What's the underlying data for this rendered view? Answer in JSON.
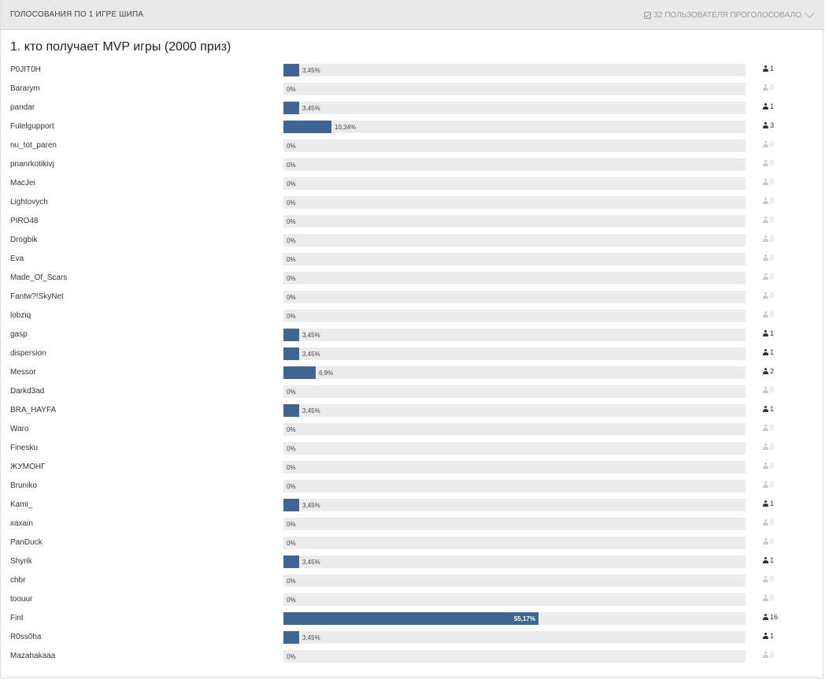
{
  "header": {
    "title": "ГОЛОСОВАНИЯ ПО 1 ИГРЕ ШИПА",
    "votes_summary": "32 ПОЛЬЗОВАТЕЛЯ ПРОГОЛОСОВАЛО",
    "check_icon": "check-square-icon",
    "toggle_icon": "chevron-down-icon"
  },
  "question": {
    "title": "1. кто получает MVP игры (2000 приз)"
  },
  "colors": {
    "bar_fill": "#3f6593",
    "bar_track": "#ececec",
    "header_bg": "#e9e9e9"
  },
  "options": [
    {
      "name": "P0JIT0H",
      "percent": 3.45,
      "percent_label": "3,45%",
      "votes": "1"
    },
    {
      "name": "Bararym",
      "percent": 0,
      "percent_label": "0%",
      "votes": "0"
    },
    {
      "name": "pandar",
      "percent": 3.45,
      "percent_label": "3,45%",
      "votes": "1"
    },
    {
      "name": "Fulelgupport",
      "percent": 10.34,
      "percent_label": "10,34%",
      "votes": "3"
    },
    {
      "name": "nu_tot_paren",
      "percent": 0,
      "percent_label": "0%",
      "votes": "0"
    },
    {
      "name": "pnanrkotikivj",
      "percent": 0,
      "percent_label": "0%",
      "votes": "0"
    },
    {
      "name": "MacJei",
      "percent": 0,
      "percent_label": "0%",
      "votes": "0"
    },
    {
      "name": "Lightovych",
      "percent": 0,
      "percent_label": "0%",
      "votes": "0"
    },
    {
      "name": "PIRO48",
      "percent": 0,
      "percent_label": "0%",
      "votes": "0"
    },
    {
      "name": "Drogbik",
      "percent": 0,
      "percent_label": "0%",
      "votes": "0"
    },
    {
      "name": "Eva",
      "percent": 0,
      "percent_label": "0%",
      "votes": "0"
    },
    {
      "name": "Made_Of_Scars",
      "percent": 0,
      "percent_label": "0%",
      "votes": "0"
    },
    {
      "name": "Fantw?!SkyNet",
      "percent": 0,
      "percent_label": "0%",
      "votes": "0"
    },
    {
      "name": "lobziq",
      "percent": 0,
      "percent_label": "0%",
      "votes": "0"
    },
    {
      "name": "gasp",
      "percent": 3.45,
      "percent_label": "3,45%",
      "votes": "1"
    },
    {
      "name": "dispersion",
      "percent": 3.45,
      "percent_label": "3,45%",
      "votes": "1"
    },
    {
      "name": "Messor",
      "percent": 6.9,
      "percent_label": "6,9%",
      "votes": "2"
    },
    {
      "name": "Darkd3ad",
      "percent": 0,
      "percent_label": "0%",
      "votes": "0"
    },
    {
      "name": "BRA_HAYFA",
      "percent": 3.45,
      "percent_label": "3,45%",
      "votes": "1"
    },
    {
      "name": "Waro",
      "percent": 0,
      "percent_label": "0%",
      "votes": "0"
    },
    {
      "name": "Finesku",
      "percent": 0,
      "percent_label": "0%",
      "votes": "0"
    },
    {
      "name": "ЖУМОНГ",
      "percent": 0,
      "percent_label": "0%",
      "votes": "0"
    },
    {
      "name": "Bruniko",
      "percent": 0,
      "percent_label": "0%",
      "votes": "0"
    },
    {
      "name": "Kami_",
      "percent": 3.45,
      "percent_label": "3,45%",
      "votes": "1"
    },
    {
      "name": "xaxain",
      "percent": 0,
      "percent_label": "0%",
      "votes": "0"
    },
    {
      "name": "PanDuck",
      "percent": 0,
      "percent_label": "0%",
      "votes": "0"
    },
    {
      "name": "Shyrik",
      "percent": 3.45,
      "percent_label": "3,45%",
      "votes": "1"
    },
    {
      "name": "chbr",
      "percent": 0,
      "percent_label": "0%",
      "votes": "0"
    },
    {
      "name": "toouur",
      "percent": 0,
      "percent_label": "0%",
      "votes": "0"
    },
    {
      "name": "Fint",
      "percent": 55.17,
      "percent_label": "55,17%",
      "votes": "16"
    },
    {
      "name": "R0ss0ha",
      "percent": 3.45,
      "percent_label": "3,45%",
      "votes": "1"
    },
    {
      "name": "Mazahakaaa",
      "percent": 0,
      "percent_label": "0%",
      "votes": "0"
    }
  ]
}
